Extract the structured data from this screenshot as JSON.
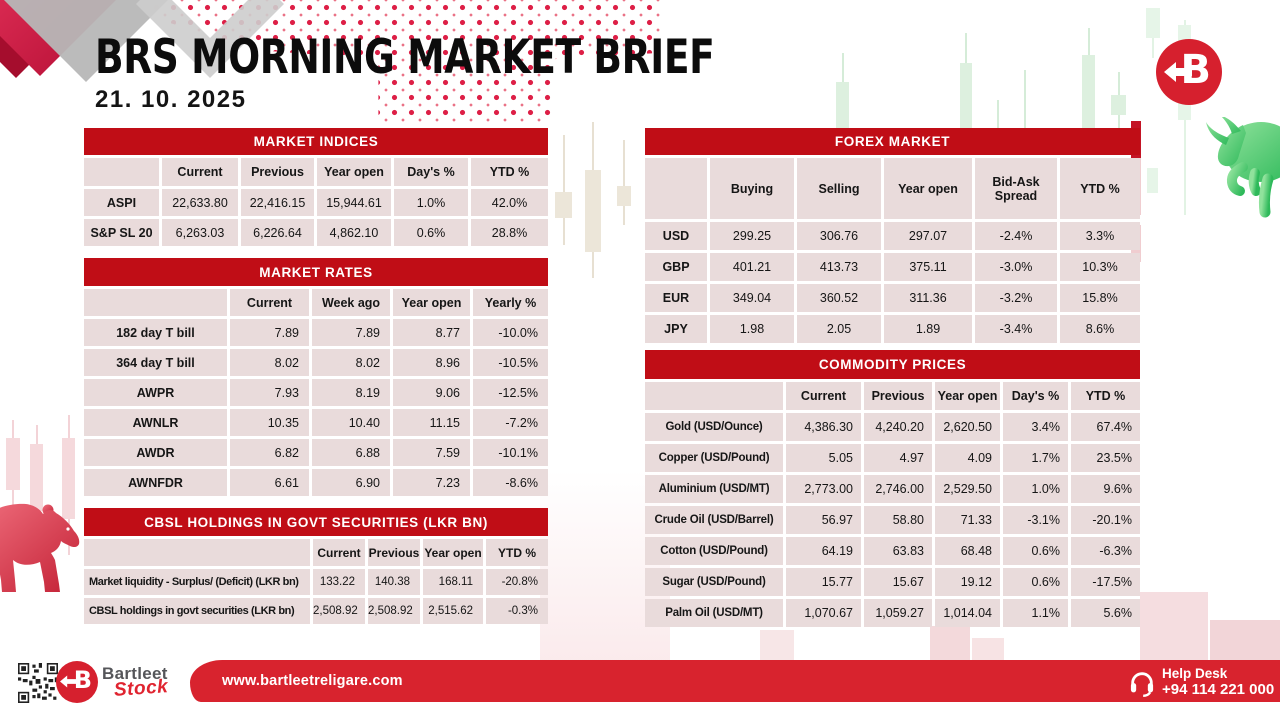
{
  "header": {
    "title": "BRS MORNING MARKET BRIEF",
    "date": "21. 10. 2025"
  },
  "colors": {
    "accent_red": "#c00d16",
    "footer_red": "#d8232e",
    "cell_pink": "#e9dbdb",
    "bull_green": "#4ecb71",
    "bear_red": "#d94456"
  },
  "tables": {
    "market_indices": {
      "title": "MARKET INDICES",
      "columns": [
        "",
        "Current",
        "Previous",
        "Year open",
        "Day's %",
        "YTD %"
      ],
      "rows": [
        {
          "label": "ASPI",
          "values": [
            "22,633.80",
            "22,416.15",
            "15,944.61",
            "1.0%",
            "42.0%"
          ]
        },
        {
          "label": "S&P SL 20",
          "values": [
            "6,263.03",
            "6,226.64",
            "4,862.10",
            "0.6%",
            "28.8%"
          ]
        }
      ]
    },
    "market_rates": {
      "title": "MARKET RATES",
      "columns": [
        "",
        "Current",
        "Week ago",
        "Year open",
        "Yearly %"
      ],
      "rows": [
        {
          "label": "182 day T bill",
          "values": [
            "7.89",
            "7.89",
            "8.77",
            "-10.0%"
          ]
        },
        {
          "label": "364 day T bill",
          "values": [
            "8.02",
            "8.02",
            "8.96",
            "-10.5%"
          ]
        },
        {
          "label": "AWPR",
          "values": [
            "7.93",
            "8.19",
            "9.06",
            "-12.5%"
          ]
        },
        {
          "label": "AWNLR",
          "values": [
            "10.35",
            "10.40",
            "11.15",
            "-7.2%"
          ]
        },
        {
          "label": "AWDR",
          "values": [
            "6.82",
            "6.88",
            "7.59",
            "-10.1%"
          ]
        },
        {
          "label": "AWNFDR",
          "values": [
            "6.61",
            "6.90",
            "7.23",
            "-8.6%"
          ]
        }
      ]
    },
    "cbsl_holdings": {
      "title": "CBSL HOLDINGS IN GOVT SECURITIES (LKR BN)",
      "columns": [
        "",
        "Current",
        "Previous",
        "Year open",
        "YTD %"
      ],
      "rows": [
        {
          "label": "Market liquidity - Surplus/ (Deficit) (LKR bn)",
          "values": [
            "133.22",
            "140.38",
            "168.11",
            "-20.8%"
          ]
        },
        {
          "label": "CBSL holdings in govt securities (LKR bn)",
          "values": [
            "2,508.92",
            "2,508.92",
            "2,515.62",
            "-0.3%"
          ]
        }
      ]
    },
    "forex_market": {
      "title": "FOREX MARKET",
      "columns": [
        "",
        "Buying",
        "Selling",
        "Year open",
        "Bid-Ask\nSpread",
        "YTD %"
      ],
      "rows": [
        {
          "label": "USD",
          "values": [
            "299.25",
            "306.76",
            "297.07",
            "-2.4%",
            "3.3%"
          ]
        },
        {
          "label": "GBP",
          "values": [
            "401.21",
            "413.73",
            "375.11",
            "-3.0%",
            "10.3%"
          ]
        },
        {
          "label": "EUR",
          "values": [
            "349.04",
            "360.52",
            "311.36",
            "-3.2%",
            "15.8%"
          ]
        },
        {
          "label": "JPY",
          "values": [
            "1.98",
            "2.05",
            "1.89",
            "-3.4%",
            "8.6%"
          ]
        }
      ]
    },
    "commodity_prices": {
      "title": "COMMODITY PRICES",
      "columns": [
        "",
        "Current",
        "Previous",
        "Year open",
        "Day's %",
        "YTD %"
      ],
      "rows": [
        {
          "label": "Gold (USD/Ounce)",
          "values": [
            "4,386.30",
            "4,240.20",
            "2,620.50",
            "3.4%",
            "67.4%"
          ]
        },
        {
          "label": "Copper (USD/Pound)",
          "values": [
            "5.05",
            "4.97",
            "4.09",
            "1.7%",
            "23.5%"
          ]
        },
        {
          "label": "Aluminium (USD/MT)",
          "values": [
            "2,773.00",
            "2,746.00",
            "2,529.50",
            "1.0%",
            "9.6%"
          ]
        },
        {
          "label": "Crude Oil (USD/Barrel)",
          "values": [
            "56.97",
            "58.80",
            "71.33",
            "-3.1%",
            "-20.1%"
          ]
        },
        {
          "label": "Cotton (USD/Pound)",
          "values": [
            "64.19",
            "63.83",
            "68.48",
            "0.6%",
            "-6.3%"
          ]
        },
        {
          "label": "Sugar (USD/Pound)",
          "values": [
            "15.77",
            "15.67",
            "19.12",
            "0.6%",
            "-17.5%"
          ]
        },
        {
          "label": "Palm Oil (USD/MT)",
          "values": [
            "1,070.67",
            "1,059.27",
            "1,014.04",
            "1.1%",
            "5.6%"
          ]
        }
      ]
    }
  },
  "footer": {
    "website": "www.bartleetreligare.com",
    "help_desk_label": "Help Desk",
    "help_desk_phone": "+94 114 221 000",
    "brand_name": "Bartleet",
    "brand_sub": "Stock"
  },
  "logo_letter": "B"
}
